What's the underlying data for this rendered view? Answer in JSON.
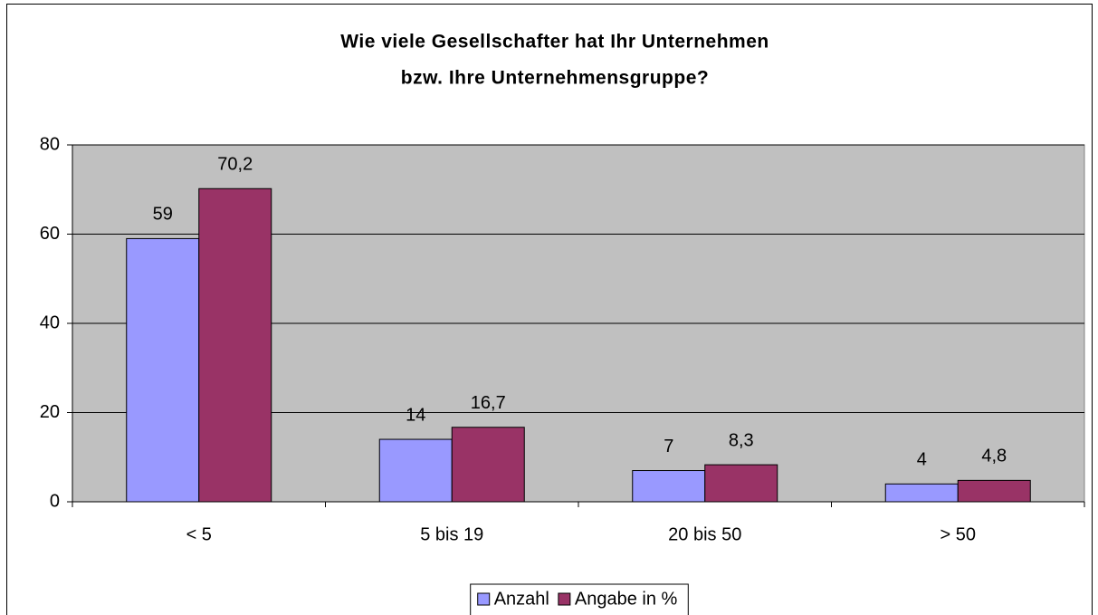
{
  "chart_data": {
    "type": "bar",
    "title": [
      "Wie viele Gesellschafter hat Ihr Unternehmen",
      "bzw. Ihre Unternehmensgruppe?"
    ],
    "categories": [
      "< 5",
      "5 bis 19",
      "20 bis 50",
      "> 50"
    ],
    "series": [
      {
        "name": "Anzahl",
        "color": "#9999ff",
        "values": [
          59,
          14,
          7,
          4
        ]
      },
      {
        "name": "Angabe in %",
        "color": "#993366",
        "values": [
          70.2,
          16.7,
          8.3,
          4.8
        ],
        "value_labels": [
          "70,2",
          "16,7",
          "8,3",
          "4,8"
        ]
      }
    ],
    "ylim": [
      0,
      80
    ],
    "yticks": [
      0,
      20,
      40,
      60,
      80
    ],
    "grid": true,
    "legend": "bottom",
    "plot_background": "#c0c0c0"
  }
}
